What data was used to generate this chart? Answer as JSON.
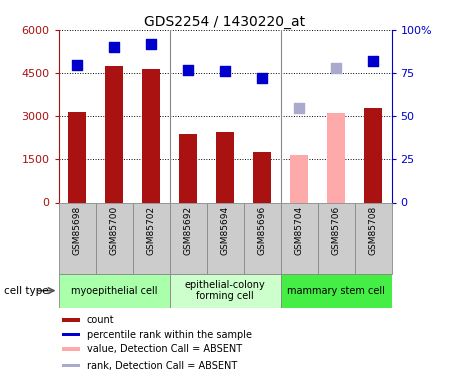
{
  "title": "GDS2254 / 1430220_at",
  "samples": [
    "GSM85698",
    "GSM85700",
    "GSM85702",
    "GSM85692",
    "GSM85694",
    "GSM85696",
    "GSM85704",
    "GSM85706",
    "GSM85708"
  ],
  "bar_values": [
    3150,
    4750,
    4650,
    2400,
    2450,
    1750,
    null,
    null,
    3300
  ],
  "bar_values_absent": [
    null,
    null,
    null,
    null,
    null,
    null,
    1650,
    3100,
    null
  ],
  "rank_values": [
    80,
    90,
    92,
    77,
    76,
    72,
    null,
    null,
    82
  ],
  "rank_values_absent": [
    null,
    null,
    null,
    null,
    null,
    null,
    55,
    78,
    null
  ],
  "bar_color_present": "#AA1111",
  "bar_color_absent": "#FFAAAA",
  "rank_color_present": "#0000CC",
  "rank_color_absent": "#AAAACC",
  "ylim_left": [
    0,
    6000
  ],
  "ylim_right": [
    0,
    100
  ],
  "yticks_left": [
    0,
    1500,
    3000,
    4500,
    6000
  ],
  "yticks_right": [
    0,
    25,
    50,
    75,
    100
  ],
  "yticklabels_right": [
    "0",
    "25",
    "50",
    "75",
    "100%"
  ],
  "cell_types": [
    {
      "label": "myoepithelial cell",
      "span": [
        0,
        3
      ],
      "color": "#AAFFAA"
    },
    {
      "label": "epithelial-colony\nforming cell",
      "span": [
        3,
        6
      ],
      "color": "#CCFFCC"
    },
    {
      "label": "mammary stem cell",
      "span": [
        6,
        9
      ],
      "color": "#44EE44"
    }
  ],
  "legend_items": [
    {
      "label": "count",
      "color": "#AA1111"
    },
    {
      "label": "percentile rank within the sample",
      "color": "#0000CC"
    },
    {
      "label": "value, Detection Call = ABSENT",
      "color": "#FFAAAA"
    },
    {
      "label": "rank, Detection Call = ABSENT",
      "color": "#AAAACC"
    }
  ],
  "bar_width": 0.5,
  "tick_bg_color": "#CCCCCC",
  "cell_type_label": "cell type",
  "group_boundaries": [
    2.5,
    5.5
  ]
}
